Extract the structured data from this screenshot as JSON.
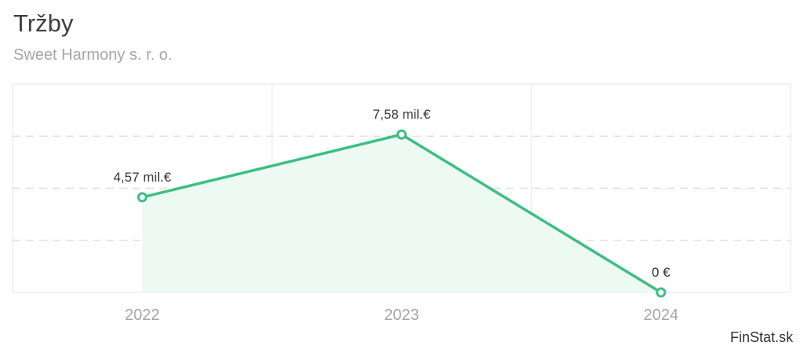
{
  "header": {
    "title": "Tržby",
    "subtitle": "Sweet Harmony s. r. o."
  },
  "footer": {
    "credit": "FinStat.sk"
  },
  "colors": {
    "line": "#3dbf82",
    "area": "#edf9f3",
    "grid_solid": "#e6e6e6",
    "grid_dashed": "#e0e0e0",
    "axis_label": "#a6a6a6",
    "data_label": "#333333"
  },
  "chart_data": {
    "type": "area",
    "title": "Tržby",
    "subtitle": "Sweet Harmony s. r. o.",
    "categories": [
      "2022",
      "2023",
      "2024"
    ],
    "values": [
      4.57,
      7.58,
      0
    ],
    "value_unit": "mil. €",
    "data_labels": [
      "4,57 mil.€",
      "7,58 mil.€",
      "0 €"
    ],
    "ylim": [
      0,
      10
    ],
    "grid": true,
    "legend": "none"
  }
}
